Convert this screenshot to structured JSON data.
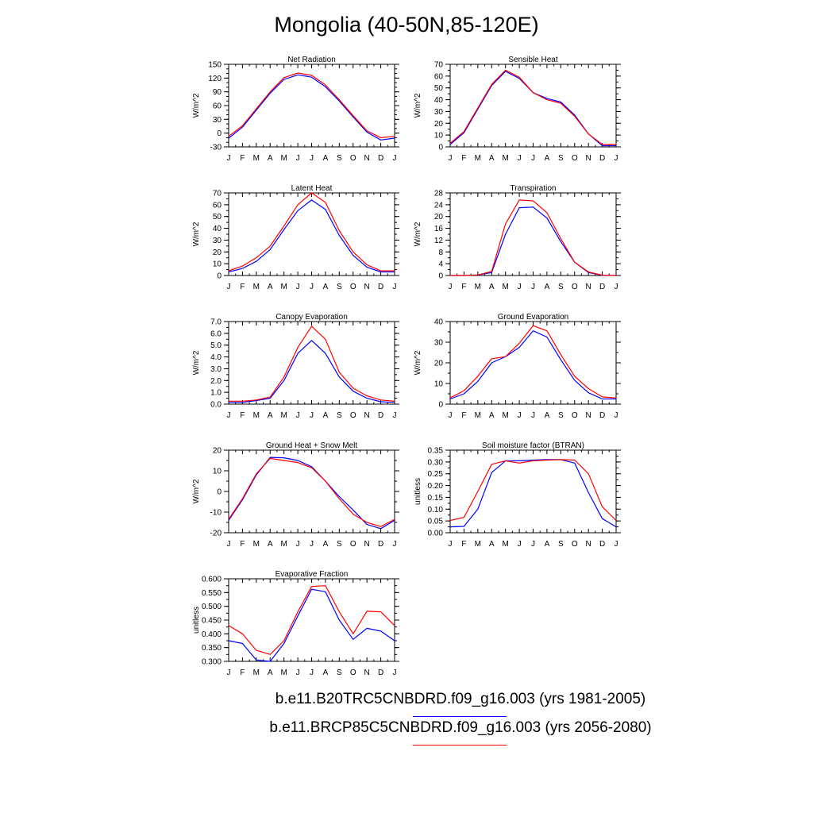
{
  "title": "Mongolia (40-50N,85-120E)",
  "months": [
    "J",
    "F",
    "M",
    "A",
    "M",
    "J",
    "J",
    "A",
    "S",
    "O",
    "N",
    "D",
    "J"
  ],
  "legend": [
    {
      "label": "b.e11.B20TRC5CNBDRD.f09_g16.003 (yrs 1981-2005)",
      "color": "#0000ff"
    },
    {
      "label": "b.e11.BRCP85C5CNBDRD.f09_g16.003 (yrs 2056-2080)",
      "color": "#ff0000"
    }
  ],
  "chart_data": [
    {
      "type": "line",
      "title": "Net Radiation",
      "ylabel": "W/m^2",
      "ylim": [
        -30,
        150
      ],
      "yticks": [
        -30,
        0,
        30,
        60,
        90,
        120,
        150
      ],
      "ytick_labels": [
        "-30",
        "0",
        "30",
        "60",
        "90",
        "120",
        "150"
      ],
      "minor_step": 10,
      "series": [
        {
          "color": "#0000ff",
          "values": [
            -11,
            13,
            50,
            87,
            117,
            127,
            122,
            101,
            70,
            35,
            2,
            -15,
            -11
          ]
        },
        {
          "color": "#ff0000",
          "values": [
            -7,
            16,
            53,
            90,
            121,
            131,
            126,
            105,
            73,
            38,
            5,
            -10,
            -7
          ]
        }
      ]
    },
    {
      "type": "line",
      "title": "Sensible Heat",
      "ylabel": "W/m^2",
      "ylim": [
        0,
        70
      ],
      "yticks": [
        0,
        10,
        20,
        30,
        40,
        50,
        60,
        70
      ],
      "ytick_labels": [
        "0",
        "10",
        "20",
        "30",
        "40",
        "50",
        "60",
        "70"
      ],
      "minor_step": 5,
      "series": [
        {
          "color": "#0000ff",
          "values": [
            2,
            12,
            32,
            52,
            64,
            58,
            46,
            41,
            38,
            27,
            11,
            1,
            1
          ]
        },
        {
          "color": "#ff0000",
          "values": [
            3,
            13,
            33,
            53,
            65,
            59,
            46,
            40,
            37,
            26,
            11,
            2,
            2
          ]
        }
      ]
    },
    {
      "type": "line",
      "title": "Latent Heat",
      "ylabel": "W/m^2",
      "ylim": [
        0,
        70
      ],
      "yticks": [
        0,
        10,
        20,
        30,
        40,
        50,
        60,
        70
      ],
      "ytick_labels": [
        "0",
        "10",
        "20",
        "30",
        "40",
        "50",
        "60",
        "70"
      ],
      "minor_step": 5,
      "series": [
        {
          "color": "#0000ff",
          "values": [
            3,
            6,
            12,
            22,
            39,
            55,
            64,
            56,
            34,
            17,
            7,
            3,
            3
          ]
        },
        {
          "color": "#ff0000",
          "values": [
            4,
            8,
            15,
            25,
            42,
            60,
            70,
            62,
            38,
            20,
            9,
            4,
            4
          ]
        }
      ]
    },
    {
      "type": "line",
      "title": "Transpiration",
      "ylabel": "W/m^2",
      "ylim": [
        0,
        28
      ],
      "yticks": [
        0,
        4,
        8,
        12,
        16,
        20,
        24,
        28
      ],
      "ytick_labels": [
        "0",
        "4",
        "8",
        "12",
        "16",
        "20",
        "24",
        "28"
      ],
      "minor_step": 2,
      "series": [
        {
          "color": "#0000ff",
          "values": [
            0,
            0,
            0.2,
            1,
            14,
            23,
            23.2,
            19.5,
            11.5,
            4.5,
            1,
            0.1,
            0
          ]
        },
        {
          "color": "#ff0000",
          "values": [
            0,
            0,
            0.2,
            1.4,
            17.5,
            25.6,
            25.3,
            21.3,
            12.5,
            4.5,
            1.2,
            0.1,
            0
          ]
        }
      ]
    },
    {
      "type": "line",
      "title": "Canopy Evaporation",
      "ylabel": "W/m^2",
      "ylim": [
        0,
        7
      ],
      "yticks": [
        0,
        1,
        2,
        3,
        4,
        5,
        6,
        7
      ],
      "ytick_labels": [
        "0.0",
        "1.0",
        "2.0",
        "3.0",
        "4.0",
        "5.0",
        "6.0",
        "7.0"
      ],
      "minor_step": 0.5,
      "series": [
        {
          "color": "#0000ff",
          "values": [
            0.15,
            0.15,
            0.3,
            0.5,
            2.0,
            4.3,
            5.4,
            4.3,
            2.3,
            1.1,
            0.5,
            0.2,
            0.15
          ]
        },
        {
          "color": "#ff0000",
          "values": [
            0.25,
            0.25,
            0.35,
            0.6,
            2.3,
            4.8,
            6.6,
            5.5,
            2.7,
            1.35,
            0.7,
            0.35,
            0.25
          ]
        }
      ]
    },
    {
      "type": "line",
      "title": "Ground Evaporation",
      "ylabel": "W/m^2",
      "ylim": [
        0,
        40
      ],
      "yticks": [
        0,
        10,
        20,
        30,
        40
      ],
      "ytick_labels": [
        "0",
        "10",
        "20",
        "30",
        "40"
      ],
      "minor_step": 5,
      "series": [
        {
          "color": "#0000ff",
          "values": [
            2.5,
            5,
            11,
            20,
            23,
            27.5,
            35.5,
            32.5,
            21.5,
            11.5,
            5.5,
            2.5,
            2.5
          ]
        },
        {
          "color": "#ff0000",
          "values": [
            3,
            6.5,
            13.5,
            22,
            23,
            29.5,
            38,
            35.5,
            24,
            13.5,
            7.5,
            3.5,
            3
          ]
        }
      ]
    },
    {
      "type": "line",
      "title": "Ground Heat + Snow Melt",
      "ylabel": "W/m^2",
      "ylim": [
        -20,
        20
      ],
      "yticks": [
        -20,
        -10,
        0,
        10,
        20
      ],
      "ytick_labels": [
        "-20",
        "-10",
        "0",
        "10",
        "20"
      ],
      "minor_step": 5,
      "series": [
        {
          "color": "#0000ff",
          "values": [
            -14,
            -4,
            8,
            16.5,
            16.3,
            15,
            12,
            5,
            -2.5,
            -9,
            -16,
            -18,
            -14
          ]
        },
        {
          "color": "#ff0000",
          "values": [
            -13.5,
            -3.5,
            8.5,
            16,
            15,
            14,
            11.5,
            5,
            -3.5,
            -11,
            -15,
            -17,
            -13.5
          ]
        }
      ]
    },
    {
      "type": "line",
      "title": "Soil moisture factor (BTRAN)",
      "ylabel": "unitless",
      "ylim": [
        0,
        0.35
      ],
      "yticks": [
        0,
        0.05,
        0.1,
        0.15,
        0.2,
        0.25,
        0.3,
        0.35
      ],
      "ytick_labels": [
        "0.00",
        "0.05",
        "0.10",
        "0.15",
        "0.20",
        "0.25",
        "0.30",
        "0.35"
      ],
      "minor_step": 0.025,
      "series": [
        {
          "color": "#0000ff",
          "values": [
            0.025,
            0.027,
            0.1,
            0.255,
            0.305,
            0.305,
            0.308,
            0.31,
            0.31,
            0.295,
            0.17,
            0.06,
            0.025
          ]
        },
        {
          "color": "#ff0000",
          "values": [
            0.052,
            0.065,
            0.175,
            0.29,
            0.305,
            0.295,
            0.305,
            0.308,
            0.31,
            0.308,
            0.25,
            0.11,
            0.052
          ]
        }
      ]
    },
    {
      "type": "line",
      "title": "Evaporative Fraction",
      "ylabel": "unitless",
      "ylim": [
        0.3,
        0.6
      ],
      "yticks": [
        0.3,
        0.35,
        0.4,
        0.45,
        0.5,
        0.55,
        0.6
      ],
      "ytick_labels": [
        "0.300",
        "0.350",
        "0.400",
        "0.450",
        "0.500",
        "0.550",
        "0.600"
      ],
      "minor_step": 0.025,
      "series": [
        {
          "color": "#0000ff",
          "values": [
            0.375,
            0.365,
            0.305,
            0.3,
            0.365,
            0.465,
            0.562,
            0.553,
            0.45,
            0.38,
            0.42,
            0.41,
            0.375
          ]
        },
        {
          "color": "#ff0000",
          "values": [
            0.43,
            0.4,
            0.34,
            0.325,
            0.375,
            0.48,
            0.572,
            0.575,
            0.48,
            0.4,
            0.482,
            0.48,
            0.43
          ]
        }
      ]
    }
  ]
}
